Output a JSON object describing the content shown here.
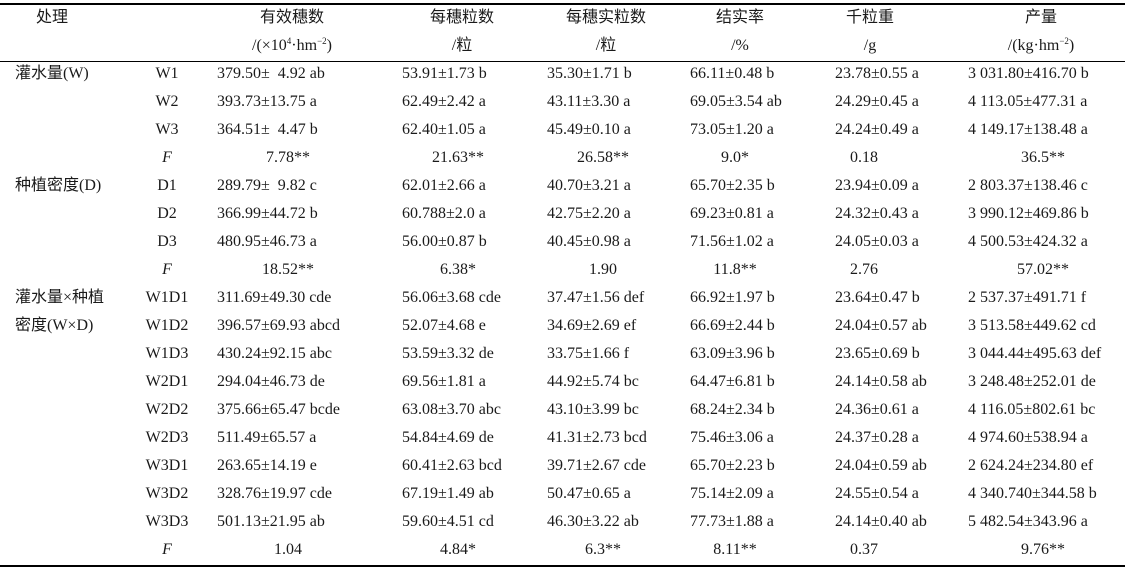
{
  "headers": {
    "treatment": "处理",
    "cols": [
      {
        "name": "有效穗数",
        "unit_pre": "/(×10",
        "unit_sup1": "4",
        "unit_mid": "·hm",
        "unit_sup2": "−2",
        "unit_post": ")"
      },
      {
        "name": "每穗粒数",
        "unit": "/粒"
      },
      {
        "name": "每穗实粒数",
        "unit": "/粒"
      },
      {
        "name": "结实率",
        "unit": "/%"
      },
      {
        "name": "千粒重",
        "unit": "/g"
      },
      {
        "name": "产量",
        "unit_pre": "/(kg·hm",
        "unit_sup": "−2",
        "unit_post": ")"
      }
    ]
  },
  "groups": [
    {
      "label": [
        "灌水量(W)"
      ],
      "rows": [
        {
          "code": "W1",
          "cells": [
            "379.50±  4.92 ab",
            "53.91±1.73 b",
            "35.30±1.71 b",
            "66.11±0.48 b",
            "23.78±0.55 a",
            "3 031.80±416.70 b"
          ]
        },
        {
          "code": "W2",
          "cells": [
            "393.73±13.75 a",
            "62.49±2.42 a",
            "43.11±3.30 a",
            "69.05±3.54 ab",
            "24.29±0.45 a",
            "4 113.05±477.31 a"
          ]
        },
        {
          "code": "W3",
          "cells": [
            "364.51±  4.47 b",
            "62.40±1.05 a",
            "45.49±0.10 a",
            "73.05±1.20 a",
            "24.24±0.49 a",
            "4 149.17±138.48 a"
          ]
        },
        {
          "code": "F",
          "cells": [
            "7.78**",
            "21.63**",
            "26.58**",
            "9.0*",
            "0.18",
            "36.5**"
          ]
        }
      ]
    },
    {
      "label": [
        "种植密度(D)"
      ],
      "rows": [
        {
          "code": "D1",
          "cells": [
            "289.79±  9.82 c",
            "62.01±2.66 a",
            "40.70±3.21 a",
            "65.70±2.35 b",
            "23.94±0.09 a",
            "2 803.37±138.46 c"
          ]
        },
        {
          "code": "D2",
          "cells": [
            "366.99±44.72 b",
            "60.788±2.0 a",
            "42.75±2.20 a",
            "69.23±0.81 a",
            "24.32±0.43 a",
            "3 990.12±469.86 b"
          ]
        },
        {
          "code": "D3",
          "cells": [
            "480.95±46.73 a",
            "56.00±0.87 b",
            "40.45±0.98 a",
            "71.56±1.02 a",
            "24.05±0.03 a",
            "4 500.53±424.32 a"
          ]
        },
        {
          "code": "F",
          "cells": [
            "18.52**",
            "6.38*",
            "1.90",
            "11.8**",
            "2.76",
            "57.02**"
          ]
        }
      ]
    },
    {
      "label": [
        "灌水量×种植",
        "密度(W×D)"
      ],
      "rows": [
        {
          "code": "W1D1",
          "cells": [
            "311.69±49.30 cde",
            "56.06±3.68 cde",
            "37.47±1.56 def",
            "66.92±1.97 b",
            "23.64±0.47 b",
            "2 537.37±491.71 f"
          ]
        },
        {
          "code": "W1D2",
          "cells": [
            "396.57±69.93 abcd",
            "52.07±4.68 e",
            "34.69±2.69 ef",
            "66.69±2.44 b",
            "24.04±0.57 ab",
            "3 513.58±449.62 cd"
          ]
        },
        {
          "code": "W1D3",
          "cells": [
            "430.24±92.15 abc",
            "53.59±3.32 de",
            "33.75±1.66 f",
            "63.09±3.96 b",
            "23.65±0.69 b",
            "3 044.44±495.63 def"
          ]
        },
        {
          "code": "W2D1",
          "cells": [
            "294.04±46.73 de",
            "69.56±1.81 a",
            "44.92±5.74 bc",
            "64.47±6.81 b",
            "24.14±0.58 ab",
            "3 248.48±252.01 de"
          ]
        },
        {
          "code": "W2D2",
          "cells": [
            "375.66±65.47 bcde",
            "63.08±3.70 abc",
            "43.10±3.99 bc",
            "68.24±2.34 b",
            "24.36±0.61 a",
            "4 116.05±802.61 bc"
          ]
        },
        {
          "code": "W2D3",
          "cells": [
            "511.49±65.57 a",
            "54.84±4.69 de",
            "41.31±2.73 bcd",
            "75.46±3.06 a",
            "24.37±0.28 a",
            "4 974.60±538.94 a"
          ]
        },
        {
          "code": "W3D1",
          "cells": [
            "263.65±14.19 e",
            "60.41±2.63 bcd",
            "39.71±2.67 cde",
            "65.70±2.23 b",
            "24.04±0.59 ab",
            "2 624.24±234.80 ef"
          ]
        },
        {
          "code": "W3D2",
          "cells": [
            "328.76±19.97 cde",
            "67.19±1.49 ab",
            "50.47±0.65 a",
            "75.14±2.09 a",
            "24.55±0.54 a",
            "4 340.740±344.58 b"
          ]
        },
        {
          "code": "W3D3",
          "cells": [
            "501.13±21.95 ab",
            "59.60±4.51 cd",
            "46.30±3.22 ab",
            "77.73±1.88 a",
            "24.14±0.40 ab",
            "5 482.54±343.96 a"
          ]
        },
        {
          "code": "F",
          "cells": [
            "1.04",
            "4.84*",
            "6.3**",
            "8.11**",
            "0.37",
            "9.76**"
          ]
        }
      ]
    }
  ]
}
